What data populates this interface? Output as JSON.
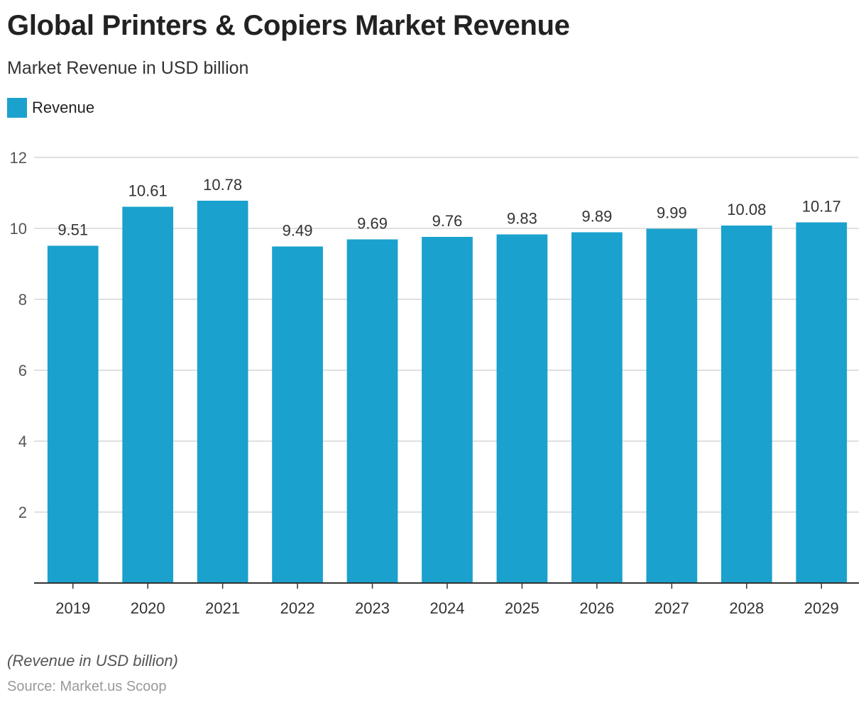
{
  "colors": {
    "bar": "#1aa1ce",
    "grid": "#d6d6d6",
    "axis": "#333333",
    "tick_text": "#555555",
    "label_text": "#333333"
  },
  "chart_data": {
    "type": "bar",
    "title": "Global Printers & Copiers Market Revenue",
    "subtitle": "Market Revenue in USD billion",
    "legend": [
      {
        "name": "Revenue",
        "color": "#1aa1ce"
      }
    ],
    "legend_position": "top-left",
    "categories": [
      "2019",
      "2020",
      "2021",
      "2022",
      "2023",
      "2024",
      "2025",
      "2026",
      "2027",
      "2028",
      "2029"
    ],
    "series": [
      {
        "name": "Revenue",
        "values": [
          9.51,
          10.61,
          10.78,
          9.49,
          9.69,
          9.76,
          9.83,
          9.89,
          9.99,
          10.08,
          10.17
        ]
      }
    ],
    "data_labels": [
      "9.51",
      "10.61",
      "10.78",
      "9.49",
      "9.69",
      "9.76",
      "9.83",
      "9.89",
      "9.99",
      "10.08",
      "10.17"
    ],
    "y_ticks": [
      2,
      4,
      6,
      8,
      10,
      12
    ],
    "ylim": [
      0,
      12
    ],
    "xlabel": "",
    "ylabel": "",
    "grid": true
  },
  "footer": {
    "note": "(Revenue in USD billion)",
    "source": "Source: Market.us Scoop"
  }
}
